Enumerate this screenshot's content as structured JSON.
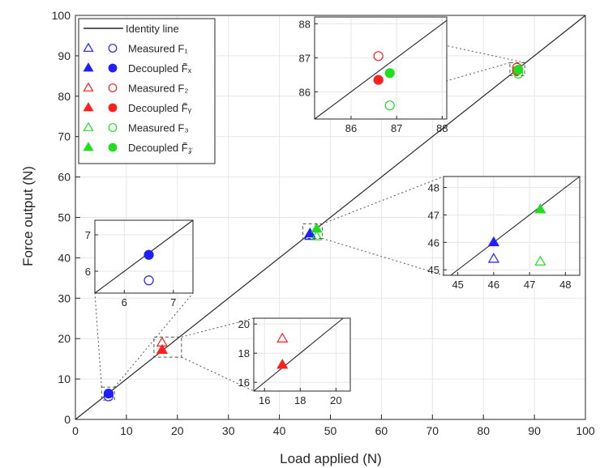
{
  "chart_data": {
    "type": "scatter",
    "xlabel": "Load applied (N)",
    "ylabel": "Force output (N)",
    "xlim": [
      0,
      100
    ],
    "ylim": [
      0,
      100
    ],
    "xticks": [
      0,
      10,
      20,
      30,
      40,
      50,
      60,
      70,
      80,
      90,
      100
    ],
    "yticks": [
      0,
      10,
      20,
      30,
      40,
      50,
      60,
      70,
      80,
      90,
      100
    ],
    "grid": true,
    "legend_position": "top-left",
    "colors": {
      "blue": "#1f1fff",
      "red": "#ff1f1f",
      "green": "#1fdf1f",
      "line": "#262626"
    },
    "identity_line": {
      "label": "Identity line",
      "x": [
        0,
        100
      ],
      "y": [
        0,
        100
      ]
    },
    "legend": [
      {
        "label": "Identity line",
        "kind": "line"
      },
      {
        "label": "Measured F₁",
        "kind": "open",
        "color": "blue"
      },
      {
        "label": "Decoupled F̃ₓ",
        "kind": "filled",
        "color": "blue"
      },
      {
        "label": "Measured F₂",
        "kind": "open",
        "color": "red"
      },
      {
        "label": "Decoupled F̃ᵧ",
        "kind": "filled",
        "color": "red"
      },
      {
        "label": "Measured F₃",
        "kind": "open",
        "color": "green"
      },
      {
        "label": "Decoupled F̃𝓏",
        "kind": "filled",
        "color": "green"
      }
    ],
    "series": [
      {
        "color": "blue",
        "style": "open",
        "marker": "circle",
        "points": [
          [
            6.5,
            5.7
          ]
        ]
      },
      {
        "color": "blue",
        "style": "filled",
        "marker": "circle",
        "points": [
          [
            6.5,
            6.4
          ]
        ]
      },
      {
        "color": "red",
        "style": "open",
        "marker": "triangle",
        "points": [
          [
            17.0,
            19.0
          ]
        ]
      },
      {
        "color": "red",
        "style": "filled",
        "marker": "triangle",
        "points": [
          [
            17.0,
            17.2
          ]
        ]
      },
      {
        "color": "blue",
        "style": "open",
        "marker": "triangle",
        "points": [
          [
            46.0,
            45.4
          ]
        ]
      },
      {
        "color": "blue",
        "style": "filled",
        "marker": "triangle",
        "points": [
          [
            46.0,
            46.0
          ]
        ]
      },
      {
        "color": "green",
        "style": "open",
        "marker": "triangle",
        "points": [
          [
            47.3,
            45.3
          ]
        ]
      },
      {
        "color": "green",
        "style": "filled",
        "marker": "triangle",
        "points": [
          [
            47.3,
            47.2
          ]
        ]
      },
      {
        "color": "red",
        "style": "open",
        "marker": "circle",
        "points": [
          [
            86.6,
            87.05
          ]
        ]
      },
      {
        "color": "red",
        "style": "filled",
        "marker": "circle",
        "points": [
          [
            86.6,
            86.35
          ]
        ]
      },
      {
        "color": "green",
        "style": "open",
        "marker": "circle",
        "points": [
          [
            86.85,
            85.6
          ]
        ]
      },
      {
        "color": "green",
        "style": "filled",
        "marker": "circle",
        "points": [
          [
            86.85,
            86.55
          ]
        ]
      }
    ],
    "insets": [
      {
        "xlim": [
          5.4,
          7.4
        ],
        "ylim": [
          5.4,
          7.4
        ],
        "xticks": [
          6,
          7
        ],
        "yticks": [
          6,
          7
        ],
        "points": [
          {
            "x": 6.5,
            "y": 6.45,
            "color": "blue",
            "style": "filled",
            "marker": "circle"
          },
          {
            "x": 6.5,
            "y": 5.75,
            "color": "blue",
            "style": "open",
            "marker": "circle"
          }
        ]
      },
      {
        "xlim": [
          15.4,
          20.8
        ],
        "ylim": [
          15.4,
          20.4
        ],
        "xticks": [
          16,
          18,
          20
        ],
        "yticks": [
          16,
          18,
          20
        ],
        "points": [
          {
            "x": 17.0,
            "y": 19.0,
            "color": "red",
            "style": "open",
            "marker": "triangle"
          },
          {
            "x": 17.0,
            "y": 17.2,
            "color": "red",
            "style": "filled",
            "marker": "triangle"
          }
        ]
      },
      {
        "xlim": [
          44.6,
          48.4
        ],
        "ylim": [
          44.8,
          48.4
        ],
        "xticks": [
          45,
          46,
          47,
          48
        ],
        "yticks": [
          45,
          46,
          47,
          48
        ],
        "points": [
          {
            "x": 46.0,
            "y": 45.4,
            "color": "blue",
            "style": "open",
            "marker": "triangle"
          },
          {
            "x": 46.0,
            "y": 46.0,
            "color": "blue",
            "style": "filled",
            "marker": "triangle"
          },
          {
            "x": 47.3,
            "y": 45.3,
            "color": "green",
            "style": "open",
            "marker": "triangle"
          },
          {
            "x": 47.3,
            "y": 47.2,
            "color": "green",
            "style": "filled",
            "marker": "triangle"
          }
        ]
      },
      {
        "xlim": [
          85.2,
          88.1
        ],
        "ylim": [
          85.2,
          88.2
        ],
        "xticks": [
          86,
          87,
          88
        ],
        "yticks": [
          86,
          87,
          88
        ],
        "points": [
          {
            "x": 86.6,
            "y": 87.05,
            "color": "red",
            "style": "open",
            "marker": "circle"
          },
          {
            "x": 86.6,
            "y": 86.35,
            "color": "red",
            "style": "filled",
            "marker": "circle"
          },
          {
            "x": 86.85,
            "y": 86.55,
            "color": "green",
            "style": "filled",
            "marker": "circle"
          },
          {
            "x": 86.85,
            "y": 85.6,
            "color": "green",
            "style": "open",
            "marker": "circle"
          }
        ]
      }
    ]
  }
}
